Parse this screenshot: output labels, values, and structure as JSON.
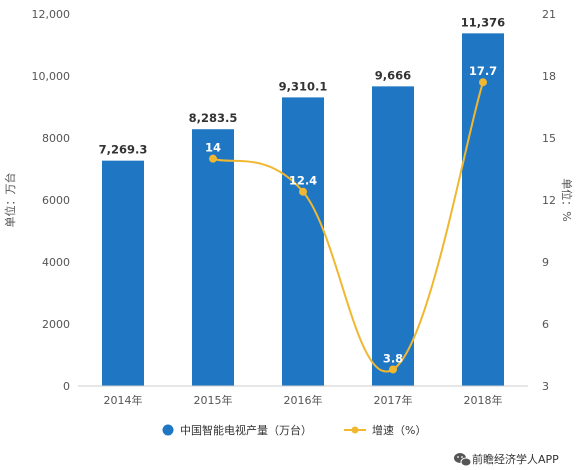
{
  "chart_data": {
    "type": "bar",
    "categories": [
      "2014年",
      "2015年",
      "2016年",
      "2017年",
      "2018年"
    ],
    "series": [
      {
        "name": "中国智能电视产量（万台）",
        "type": "bar",
        "axis": "left",
        "values": [
          7269.3,
          8283.5,
          9310.1,
          9666,
          11376
        ],
        "labels": [
          "7,269.3",
          "8,283.5",
          "9,310.1",
          "9,666",
          "11,376"
        ],
        "color": "#1f77c4"
      },
      {
        "name": "增速（%）",
        "type": "line",
        "axis": "right",
        "values": [
          null,
          14,
          12.4,
          3.8,
          17.7
        ],
        "labels": [
          "",
          "14",
          "12.4",
          "3.8",
          "17.7"
        ],
        "color": "#f0b731"
      }
    ],
    "ylabel": "单位：万台",
    "y2label": "单位：%",
    "ylim": [
      0,
      12000
    ],
    "y2lim": [
      3,
      21
    ],
    "yticks": [
      "0",
      "2000",
      "4000",
      "6000",
      "8000",
      "10,000",
      "12,000"
    ],
    "y2ticks": [
      "3",
      "6",
      "9",
      "12",
      "15",
      "18",
      "21"
    ],
    "grid": false,
    "legend": "bottom"
  },
  "legend": {
    "bar_label": "中国智能电视产量（万台）",
    "line_label": "增速（%）"
  },
  "source": {
    "icon": "wechat-icon",
    "text": "前瞻经济学人APP"
  }
}
